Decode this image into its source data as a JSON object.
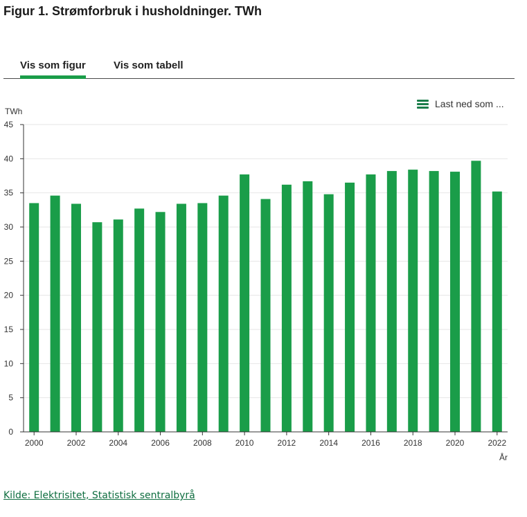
{
  "title": "Figur 1. Strømforbruk i husholdninger. TWh",
  "tabs": [
    {
      "label": "Vis som figur",
      "active": true
    },
    {
      "label": "Vis som tabell",
      "active": false
    }
  ],
  "download": {
    "label": "Last ned som ...",
    "icon": "menu-icon"
  },
  "source": {
    "text": "Kilde: Elektrisitet, Statistisk sentralbyrå"
  },
  "colors": {
    "accent": "#1a9d49",
    "bar": "#1a9d49",
    "link": "#0f6e40"
  },
  "chart_data": {
    "type": "bar",
    "ylabel": "TWh",
    "xlabel": "År",
    "ylim": [
      0,
      45
    ],
    "yticks": [
      0,
      5,
      10,
      15,
      20,
      25,
      30,
      35,
      40,
      45
    ],
    "categories": [
      "2000",
      "2001",
      "2002",
      "2003",
      "2004",
      "2005",
      "2006",
      "2007",
      "2008",
      "2009",
      "2010",
      "2011",
      "2012",
      "2013",
      "2014",
      "2015",
      "2016",
      "2017",
      "2018",
      "2019",
      "2020",
      "2021",
      "2022"
    ],
    "xtick_labels": [
      "2000",
      "2002",
      "2004",
      "2006",
      "2008",
      "2010",
      "2012",
      "2014",
      "2016",
      "2018",
      "2020",
      "2022"
    ],
    "values": [
      33.5,
      34.6,
      33.4,
      30.7,
      31.1,
      32.7,
      32.2,
      33.4,
      33.5,
      34.6,
      37.7,
      34.1,
      36.2,
      36.7,
      34.8,
      36.5,
      37.7,
      38.2,
      38.4,
      38.2,
      38.1,
      39.7,
      35.2
    ],
    "grid": true,
    "legend": "none"
  }
}
